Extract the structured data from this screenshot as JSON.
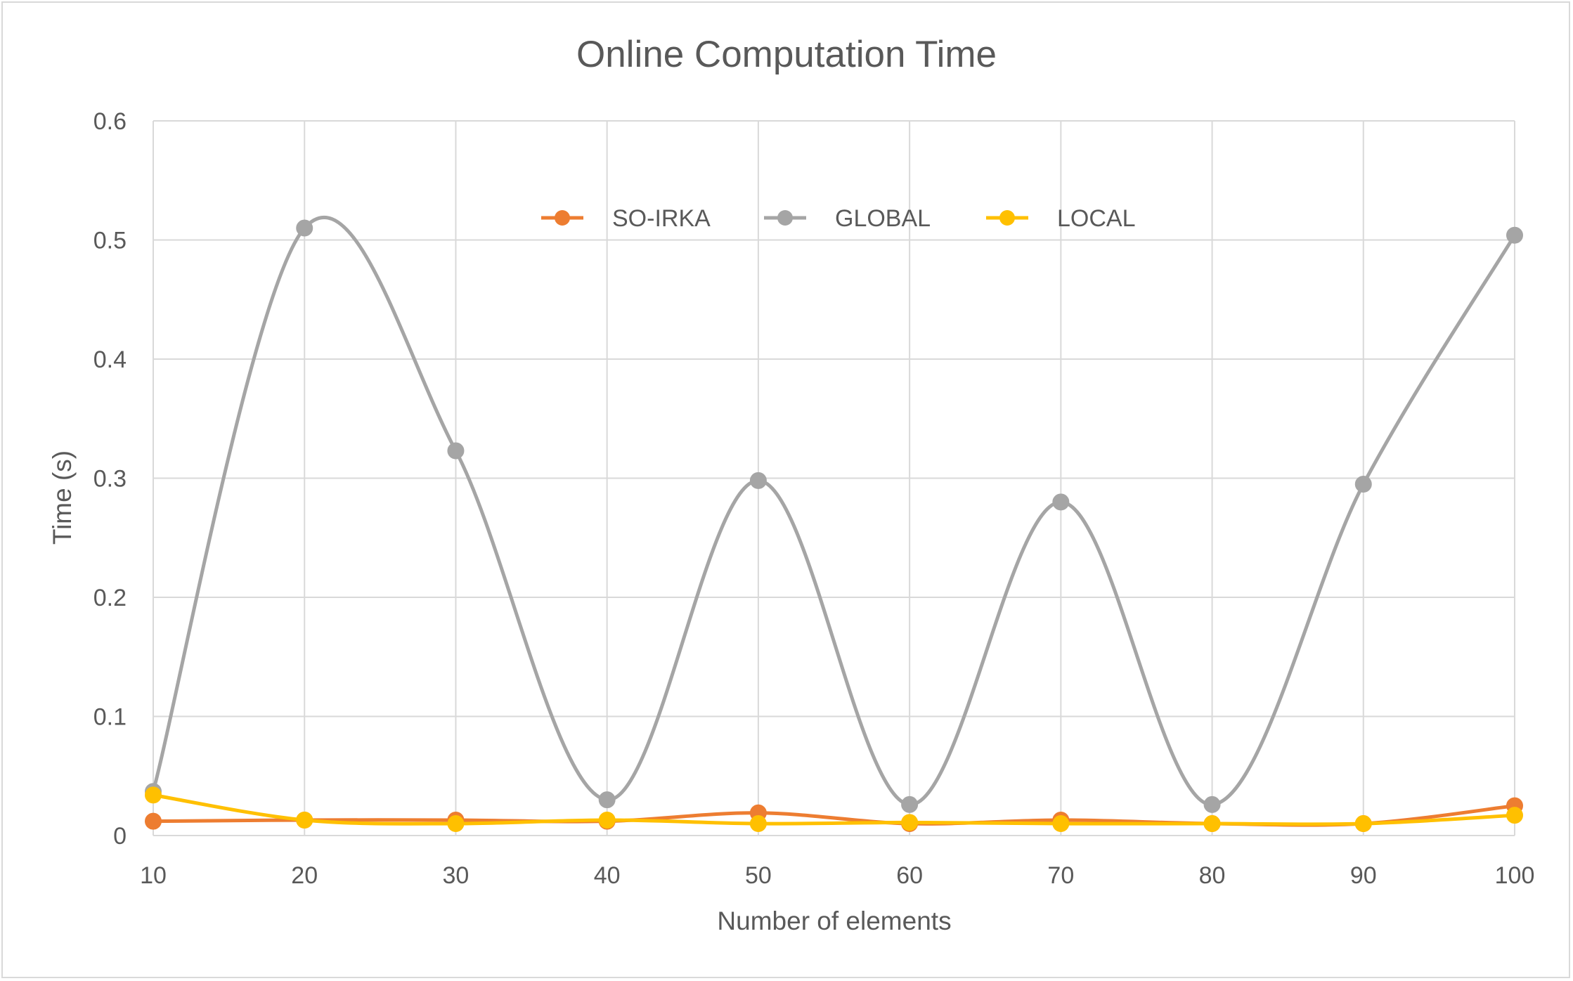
{
  "chart_data": {
    "type": "line",
    "title": "Online Computation Time",
    "xlabel": "Number of elements",
    "ylabel": "Time (s)",
    "x": [
      10,
      20,
      30,
      40,
      50,
      60,
      70,
      80,
      90,
      100
    ],
    "x_tick_labels": [
      "10",
      "20",
      "30",
      "40",
      "50",
      "60",
      "70",
      "80",
      "90",
      "100"
    ],
    "ylim": [
      0,
      0.6
    ],
    "y_ticks": [
      0,
      0.1,
      0.2,
      0.3,
      0.4,
      0.5,
      0.6
    ],
    "y_tick_labels": [
      "0",
      "0.1",
      "0.2",
      "0.3",
      "0.4",
      "0.5",
      "0.6"
    ],
    "grid": true,
    "smooth": true,
    "legend_position": "top-center",
    "series": [
      {
        "name": "SO-IRKA",
        "color": "#ED7D31",
        "values": [
          0.012,
          0.013,
          0.013,
          0.012,
          0.019,
          0.01,
          0.013,
          0.01,
          0.01,
          0.025
        ]
      },
      {
        "name": "GLOBAL",
        "color": "#A5A5A5",
        "values": [
          0.037,
          0.51,
          0.323,
          0.03,
          0.298,
          0.026,
          0.28,
          0.026,
          0.295,
          0.504
        ]
      },
      {
        "name": "LOCAL",
        "color": "#FFC000",
        "values": [
          0.034,
          0.013,
          0.01,
          0.013,
          0.01,
          0.011,
          0.01,
          0.01,
          0.01,
          0.017
        ]
      }
    ]
  }
}
